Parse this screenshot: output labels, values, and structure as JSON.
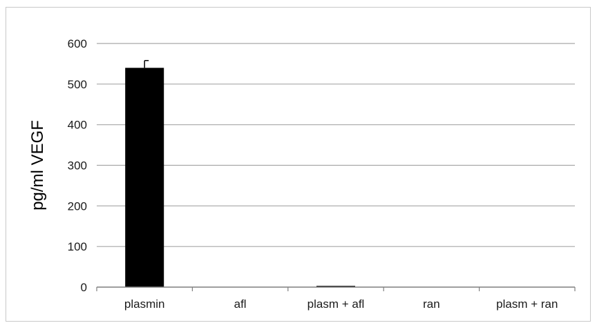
{
  "chart_data": {
    "type": "bar",
    "title": "",
    "xlabel": "",
    "ylabel": "pg/ml VEGF",
    "categories": [
      "plasmin",
      "afl",
      "plasm + afl",
      "ran",
      "plasm + ran"
    ],
    "values": [
      540,
      0,
      3,
      0,
      0
    ],
    "error": [
      18,
      0,
      0,
      0,
      0
    ],
    "ylim": [
      0,
      600
    ],
    "yticks": [
      0,
      100,
      200,
      300,
      400,
      500,
      600
    ],
    "grid": true,
    "legend": "none",
    "colors": {
      "bar": "#000000",
      "grid": "#a6a6a6",
      "axis": "#7f7f7f"
    }
  }
}
